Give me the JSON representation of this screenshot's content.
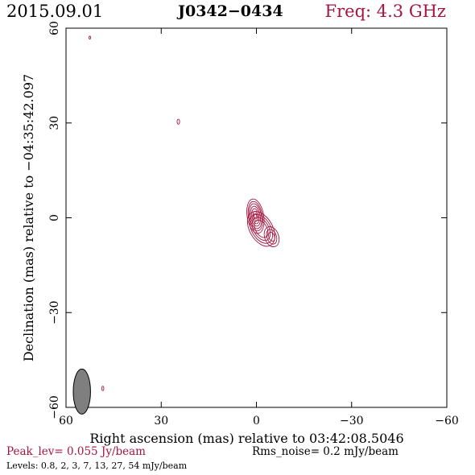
{
  "header": {
    "date": "2015.09.01",
    "source": "J0342−0434",
    "freq": "Freq: 4.3 GHz"
  },
  "colors": {
    "accent": "#a3163f",
    "ink": "#000000",
    "beam": "#7f7f7f"
  },
  "chart_data": {
    "type": "contour",
    "xlabel": "Right ascension (mas) relative to 03:42:08.5046",
    "ylabel": "Declination (mas) relative to −04:35:42.097",
    "xlim": [
      60,
      -60
    ],
    "ylim": [
      -60,
      60
    ],
    "xticks": [
      60,
      30,
      0,
      -30,
      -60
    ],
    "yticks": [
      60,
      30,
      0,
      -30,
      -60
    ],
    "xtick_labels": [
      "60",
      "30",
      "0",
      "−30",
      "−60"
    ],
    "ytick_labels": [
      "60",
      "30",
      "0",
      "−30",
      "−60"
    ],
    "peak_text": "Peak_lev=  0.055 Jy/beam",
    "rms_text": "Rms_noise=   0.2 mJy/beam",
    "levels_text": "Levels: 0.8,   2,   3,   7,  13,  27,  54 mJy/beam",
    "levels_mjy": [
      0.8,
      2,
      3,
      7,
      13,
      27,
      54
    ],
    "peak_jy": 0.055,
    "rms_mjy": 0.2,
    "beam": {
      "ra": 55,
      "dec": -55,
      "major_mas": 7.5,
      "minor_mas": 3.2,
      "pa_deg": 0
    },
    "components": [
      {
        "name": "core",
        "ra": 0.3,
        "dec": 0.5,
        "level_sizes": [
          [
            2.6,
            5.5,
            -10
          ],
          [
            2.2,
            4.7,
            -10
          ],
          [
            1.9,
            4.0,
            -10
          ],
          [
            1.5,
            3.2,
            -10
          ],
          [
            1.1,
            2.4,
            -10
          ],
          [
            0.7,
            1.6,
            -10
          ],
          [
            0.4,
            0.9,
            -10
          ]
        ]
      },
      {
        "name": "jet",
        "ra": -1.5,
        "dec": -3.5,
        "level_sizes": [
          [
            3.6,
            6.0,
            -30
          ],
          [
            3.0,
            5.0,
            -30
          ],
          [
            2.4,
            4.0,
            -30
          ],
          [
            1.8,
            3.0,
            -30
          ]
        ]
      },
      {
        "name": "knot",
        "ra": -4.8,
        "dec": -6.0,
        "level_sizes": [
          [
            2.2,
            3.3,
            -20
          ],
          [
            1.5,
            2.4,
            -20
          ],
          [
            0.9,
            1.5,
            -20
          ]
        ]
      },
      {
        "name": "spot-a",
        "ra": 52.5,
        "dec": 57.0,
        "level_sizes": [
          [
            0.25,
            0.45,
            0
          ]
        ]
      },
      {
        "name": "spot-b",
        "ra": 24.6,
        "dec": 30.4,
        "level_sizes": [
          [
            0.4,
            0.8,
            0
          ]
        ]
      },
      {
        "name": "spot-c",
        "ra": 48.4,
        "dec": -54.0,
        "level_sizes": [
          [
            0.3,
            0.7,
            0
          ]
        ]
      }
    ]
  }
}
